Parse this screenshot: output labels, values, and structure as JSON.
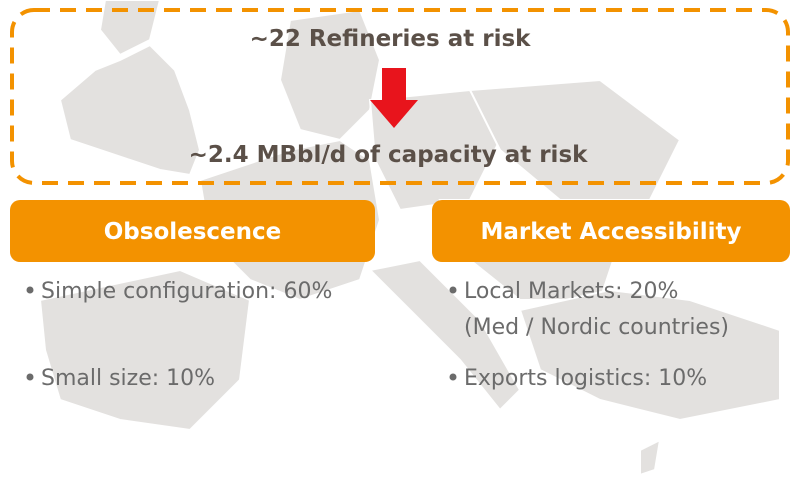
{
  "header": {
    "title": "~22 Refineries at risk",
    "subtitle": "~2.4 MBbl/d of capacity at risk"
  },
  "boxes": [
    {
      "title": "Obsolescence",
      "items": [
        [
          "Simple configuration: 60%"
        ],
        [
          "Small size: 10%"
        ]
      ]
    },
    {
      "title": "Market Accessibility",
      "items": [
        [
          "Local Markets: 20%",
          "(Med / Nordic countries)"
        ],
        [
          "Exports logistics: 10%"
        ]
      ]
    }
  ]
}
